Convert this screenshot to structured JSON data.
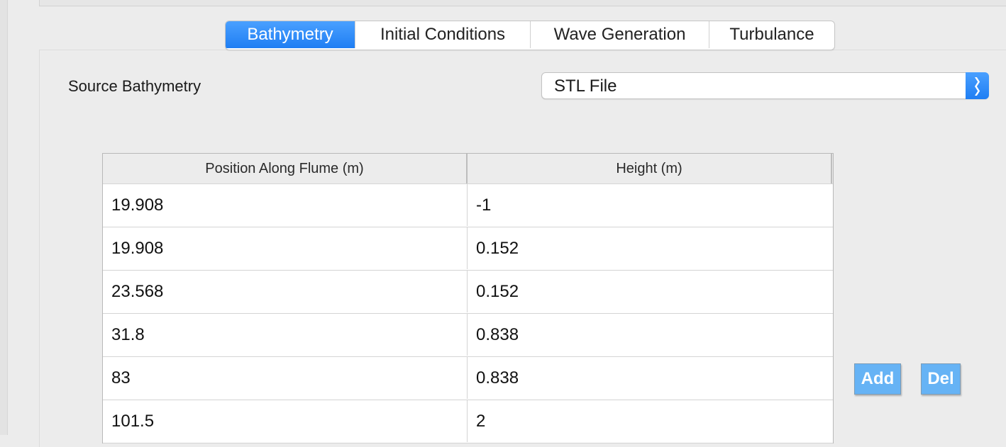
{
  "tabs": [
    {
      "label": "Bathymetry",
      "active": true
    },
    {
      "label": "Initial Conditions",
      "active": false
    },
    {
      "label": "Wave Generation",
      "active": false
    },
    {
      "label": "Turbulance",
      "active": false
    }
  ],
  "source": {
    "label": "Source Bathymetry",
    "selected": "STL File"
  },
  "table": {
    "headers": [
      "Position Along Flume (m)",
      "Height (m)"
    ],
    "rows": [
      [
        "19.908",
        "-1"
      ],
      [
        "19.908",
        "0.152"
      ],
      [
        "23.568",
        "0.152"
      ],
      [
        "31.8",
        "0.838"
      ],
      [
        "83",
        "0.838"
      ],
      [
        "101.5",
        "2"
      ]
    ]
  },
  "buttons": {
    "add_label": "Add",
    "del_label": "Del"
  },
  "colors": {
    "accent": "#1f7ef3",
    "button": "#66b3f5"
  }
}
